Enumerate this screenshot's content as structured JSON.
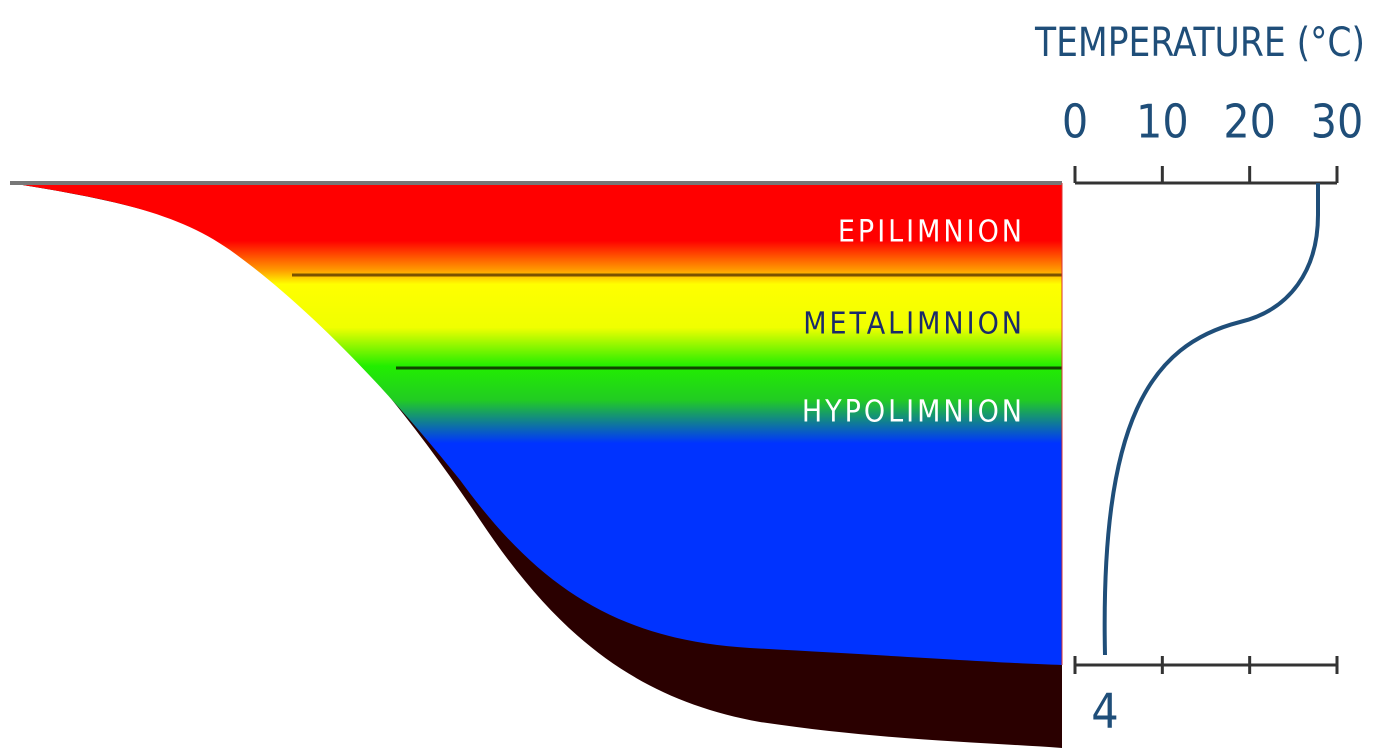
{
  "layers": [
    "EPILIMNION",
    "METALIMNION",
    "HYPOLIMNION"
  ],
  "temperature_axis": {
    "title": "TEMPERATURE (°C)",
    "ticks": [
      0,
      10,
      20,
      30
    ]
  },
  "bottom_label": "4"
}
